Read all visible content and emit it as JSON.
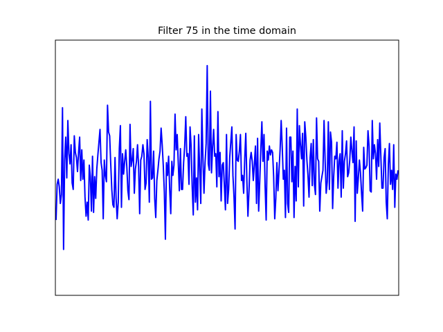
{
  "chart_data": {
    "type": "line",
    "title": "Filter 75 in the time domain",
    "xlabel": "",
    "ylabel": "",
    "x_ticks_visible": false,
    "y_ticks_visible": false,
    "grid": false,
    "ylim": [
      -1.0,
      1.0
    ],
    "series": [
      {
        "color": "#0000ff",
        "x_start": 0,
        "x_step": 1,
        "y": [
          -0.41,
          -0.13,
          -0.09,
          -0.15,
          -0.28,
          -0.21,
          0.47,
          -0.64,
          0.06,
          0.24,
          -0.08,
          0.37,
          0.11,
          0.03,
          0.18,
          -0.12,
          -0.17,
          0.25,
          0.12,
          0.08,
          -0.03,
          0.12,
          0.24,
          -0.1,
          0.14,
          -0.09,
          0.06,
          -0.23,
          -0.38,
          -0.27,
          -0.41,
          0.02,
          -0.07,
          -0.34,
          0.09,
          -0.35,
          -0.07,
          -0.24,
          -0.01,
          0.1,
          0.2,
          0.3,
          0.04,
          -0.02,
          -0.4,
          0.06,
          -0.06,
          -0.11,
          0.49,
          0.28,
          0.25,
          0.03,
          -0.17,
          -0.29,
          -0.31,
          0.08,
          -0.24,
          -0.4,
          -0.27,
          0.15,
          0.33,
          -0.31,
          0.11,
          -0.05,
          0.05,
          0.14,
          0.01,
          -0.18,
          -0.25,
          0.34,
          0.01,
          0.06,
          0.15,
          -0.2,
          -0.01,
          0.05,
          0.18,
          0.01,
          -0.36,
          0.06,
          0.09,
          0.18,
          0.11,
          -0.17,
          -0.12,
          0.22,
          0.08,
          -0.27,
          0.52,
          -0.09,
          -0.08,
          0.13,
          -0.24,
          -0.39,
          -0.1,
          -0.02,
          0.07,
          0.13,
          0.31,
          0.18,
          0.02,
          -0.19,
          -0.56,
          0.04,
          -0.06,
          0.09,
          -0.17,
          -0.36,
          0.05,
          -0.06,
          0.02,
          0.42,
          0.14,
          0.26,
          0.04,
          -0.18,
          0.15,
          -0.17,
          -0.17,
          0.04,
          0.17,
          0.4,
          0.09,
          0.11,
          -0.13,
          0.32,
          0.17,
          -0.15,
          -0.37,
          0.25,
          -0.27,
          -0.08,
          -0.33,
          0.26,
          -0.01,
          -0.28,
          0.46,
          0.08,
          -0.2,
          0.04,
          0.19,
          0.8,
          0.03,
          -0.02,
          0.6,
          -0.04,
          0.16,
          0.3,
          0.09,
          0.11,
          -0.15,
          0.44,
          -0.07,
          0.12,
          -0.26,
          0.02,
          0.04,
          -0.14,
          -0.33,
          0.26,
          -0.28,
          -0.17,
          0.08,
          0.2,
          0.32,
          -0.06,
          -0.23,
          -0.48,
          0.26,
          0.06,
          0.05,
          0.13,
          0.26,
          -0.1,
          -0.06,
          -0.2,
          0.07,
          0.27,
          -0.1,
          -0.38,
          -0.18,
          0.06,
          0.12,
          0.05,
          -0.1,
          0.03,
          0.17,
          -0.28,
          0.23,
          -0.34,
          -0.11,
          0.14,
          0.36,
          0.05,
          0.26,
          -0.14,
          -0.41,
          0.13,
          0.06,
          0.17,
          0.1,
          0.14,
          0.12,
          -0.07,
          -0.4,
          -0.24,
          0.04,
          -0.18,
          -0.02,
          0.14,
          0.37,
          0.16,
          -0.09,
          -0.02,
          -0.39,
          0.31,
          -0.28,
          -0.35,
          0.24,
          0.24,
          -0.11,
          0.13,
          -0.39,
          0.01,
          -0.26,
          0.46,
          -0.15,
          0.33,
          0.18,
          0.07,
          0.27,
          -0.3,
          0.36,
          0.24,
          0.06,
          -0.06,
          -0.23,
          0.08,
          0.19,
          -0.14,
          0.22,
          -0.13,
          -0.21,
          0.39,
          0.07,
          0.05,
          -0.34,
          -0.12,
          -0.07,
          -0.02,
          0.37,
          0.06,
          -0.2,
          -0.11,
          0.36,
          -0.17,
          0.28,
          0.2,
          -0.32,
          -0.07,
          0.09,
          0.07,
          0.2,
          -0.16,
          0.05,
          0.11,
          -0.23,
          0.29,
          -0.16,
          0.05,
          0.11,
          0.21,
          -0.07,
          -0.04,
          0.06,
          0.24,
          0.13,
          0.04,
          0.32,
          -0.42,
          0.21,
          -0.2,
          -0.08,
          0.06,
          -0.04,
          -0.2,
          -0.34,
          0.16,
          -0.01,
          0.0,
          0.02,
          0.29,
          0.17,
          -0.18,
          -0.19,
          0.37,
          0.07,
          0.18,
          0.11,
          -0.09,
          0.22,
          0.01,
          0.35,
          0.09,
          -0.16,
          -0.16,
          0.08,
          0.15,
          -0.27,
          -0.4,
          0.03,
          0.19,
          -0.13,
          -0.02,
          -0.17,
          0.18,
          -0.31,
          -0.05,
          -0.09,
          -0.02
        ]
      }
    ]
  }
}
